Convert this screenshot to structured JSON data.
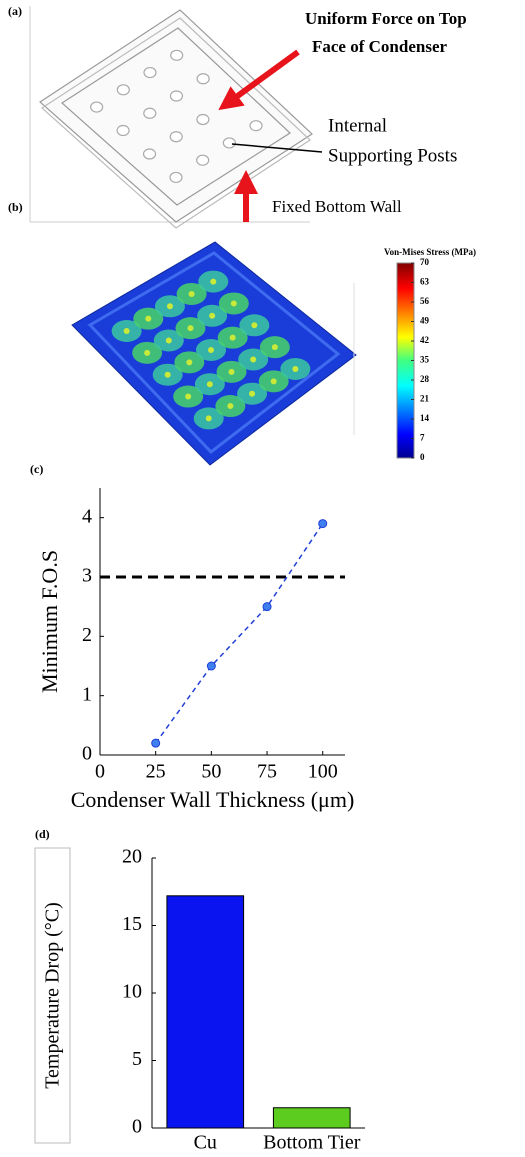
{
  "panel_a": {
    "label": "(a)",
    "annotations": [
      "Uniform Force on Top",
      "Face of Condenser",
      "Internal",
      "Supporting Posts",
      "Fixed Bottom Wall"
    ]
  },
  "panel_b": {
    "label": "(b)",
    "colorbar": {
      "title": "Von-Mises Stress (MPa)",
      "ticks": [
        0,
        7,
        14,
        21,
        28,
        35,
        42,
        49,
        56,
        63,
        70
      ]
    }
  },
  "chart_data": [
    {
      "type": "line",
      "label": "(c)",
      "xlabel": "Condenser Wall Thickness (μm)",
      "ylabel": "Minimum F.O.S",
      "x": [
        25,
        50,
        75,
        100
      ],
      "values": [
        0.2,
        1.5,
        2.5,
        3.9
      ],
      "color": "#1f3fd6",
      "reference_line": 3,
      "reference_color": "#000000",
      "xlim": [
        0,
        110
      ],
      "xticks": [
        0,
        25,
        50,
        75,
        100
      ],
      "ylim": [
        0,
        4.5
      ],
      "yticks": [
        0,
        1,
        2,
        3,
        4
      ]
    },
    {
      "type": "bar",
      "label": "(d)",
      "ylabel": "Temperature Drop (°C)",
      "categories": [
        "Cu",
        "Bottom Tier"
      ],
      "values": [
        17.2,
        1.5
      ],
      "colors": [
        "#0a14f0",
        "#5ccc1e"
      ],
      "ylim": [
        0,
        20
      ],
      "yticks": [
        0,
        5,
        10,
        15,
        20
      ]
    }
  ]
}
